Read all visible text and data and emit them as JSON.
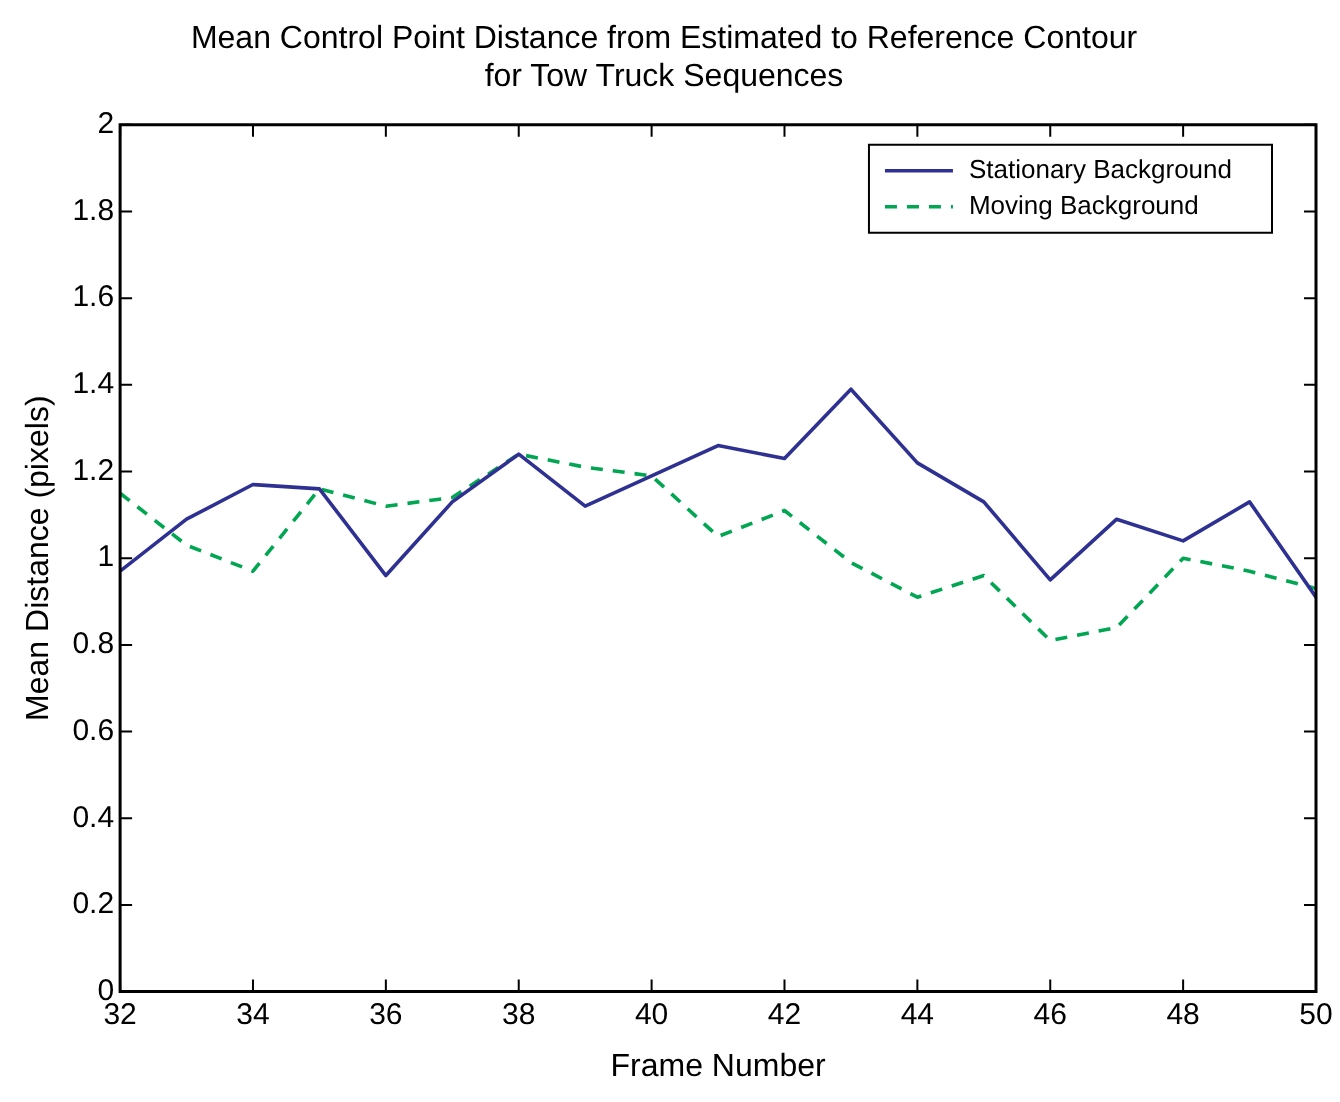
{
  "chart_data": {
    "type": "line",
    "title": "Mean Control Point Distance from Estimated to Reference Contour\nfor Tow Truck Sequences",
    "xlabel": "Frame Number",
    "ylabel": "Mean Distance (pixels)",
    "x": [
      32,
      33,
      34,
      35,
      36,
      37,
      38,
      39,
      40,
      41,
      42,
      43,
      44,
      45,
      46,
      47,
      48,
      49,
      50
    ],
    "series": [
      {
        "name": "Stationary Background",
        "color": "#2e3192",
        "line_style": "solid",
        "values": [
          0.97,
          1.09,
          1.17,
          1.16,
          0.96,
          1.13,
          1.24,
          1.12,
          1.19,
          1.26,
          1.23,
          1.39,
          1.22,
          1.13,
          0.95,
          1.09,
          1.04,
          1.13,
          0.91
        ]
      },
      {
        "name": "Moving Background",
        "color": "#00a651",
        "line_style": "dashed",
        "values": [
          1.15,
          1.03,
          0.97,
          1.16,
          1.12,
          1.14,
          1.24,
          1.21,
          1.19,
          1.05,
          1.11,
          0.99,
          0.91,
          0.96,
          0.81,
          0.84,
          1.0,
          0.97,
          0.93
        ]
      }
    ],
    "xlim": [
      32,
      50
    ],
    "xticks": [
      32,
      34,
      36,
      38,
      40,
      42,
      44,
      46,
      48,
      50
    ],
    "ylim": [
      0,
      2
    ],
    "yticks": [
      0,
      0.2,
      0.4,
      0.6,
      0.8,
      1,
      1.2,
      1.4,
      1.6,
      1.8,
      2
    ],
    "grid": false,
    "legend": "top right",
    "marker": "none"
  }
}
